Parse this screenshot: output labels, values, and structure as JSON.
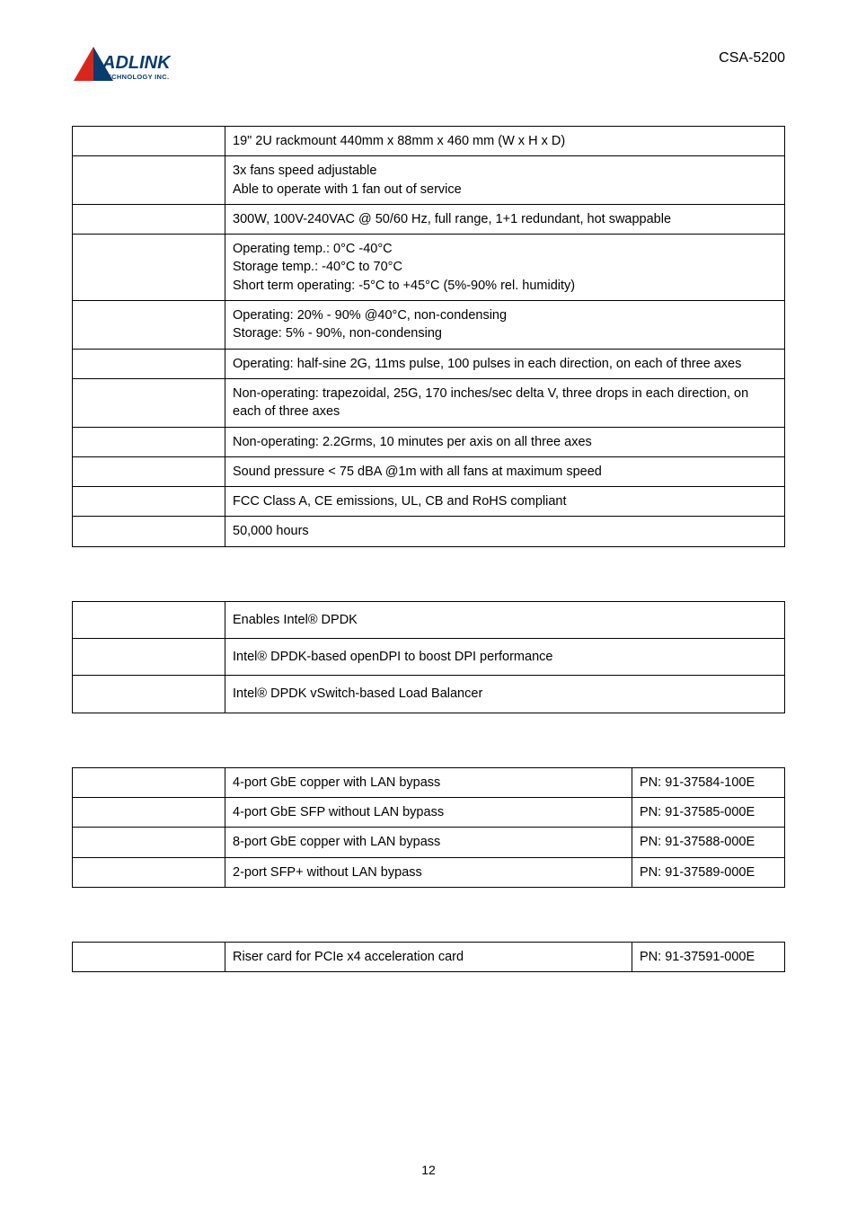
{
  "header": {
    "logo_text_top": "ADLINK",
    "logo_text_bottom": "TECHNOLOGY INC.",
    "logo_triangle_color": "#d9261c",
    "logo_text_color": "#0b3c6e",
    "product_code": "CSA-5200"
  },
  "table1": {
    "rows": [
      {
        "value": "19\" 2U rackmount 440mm x 88mm x 460 mm (W x H x D)"
      },
      {
        "value": "3x fans speed adjustable\nAble to operate with 1 fan out of service"
      },
      {
        "value": "300W, 100V-240VAC @ 50/60 Hz, full range, 1+1 redundant, hot swappable"
      },
      {
        "value": "Operating temp.: 0°C -40°C\nStorage temp.: -40°C to 70°C\nShort term operating: -5°C to +45°C (5%-90% rel. humidity)"
      },
      {
        "value": "Operating: 20% - 90% @40°C, non-condensing\nStorage: 5% - 90%, non-condensing"
      },
      {
        "value": "Operating: half-sine 2G, 11ms pulse, 100 pulses in each direction, on each of three axes"
      },
      {
        "value": "Non-operating: trapezoidal, 25G, 170 inches/sec delta V, three drops in each direction, on each of three axes"
      },
      {
        "value": "Non-operating: 2.2Grms, 10 minutes per axis on all three axes"
      },
      {
        "value": "Sound pressure < 75 dBA @1m with all fans at maximum speed"
      },
      {
        "value": "FCC Class A, CE emissions, UL, CB and RoHS compliant"
      },
      {
        "value": "50,000 hours"
      }
    ]
  },
  "table2": {
    "rows": [
      {
        "value": "Enables Intel® DPDK"
      },
      {
        "value": "Intel® DPDK-based openDPI to boost DPI performance"
      },
      {
        "value": "Intel® DPDK vSwitch-based Load Balancer"
      }
    ]
  },
  "table3": {
    "rows": [
      {
        "desc": "4-port GbE copper with LAN bypass",
        "pn": "PN: 91-37584-100E"
      },
      {
        "desc": "4-port GbE SFP without LAN bypass",
        "pn": "PN: 91-37585-000E"
      },
      {
        "desc": "8-port GbE copper with LAN bypass",
        "pn": "PN: 91-37588-000E"
      },
      {
        "desc": "2-port SFP+ without LAN bypass",
        "pn": "PN: 91-37589-000E"
      }
    ]
  },
  "table4": {
    "rows": [
      {
        "desc": "Riser card for PCIe x4 acceleration card",
        "pn": "PN: 91-37591-000E"
      }
    ]
  },
  "page_number": "12"
}
